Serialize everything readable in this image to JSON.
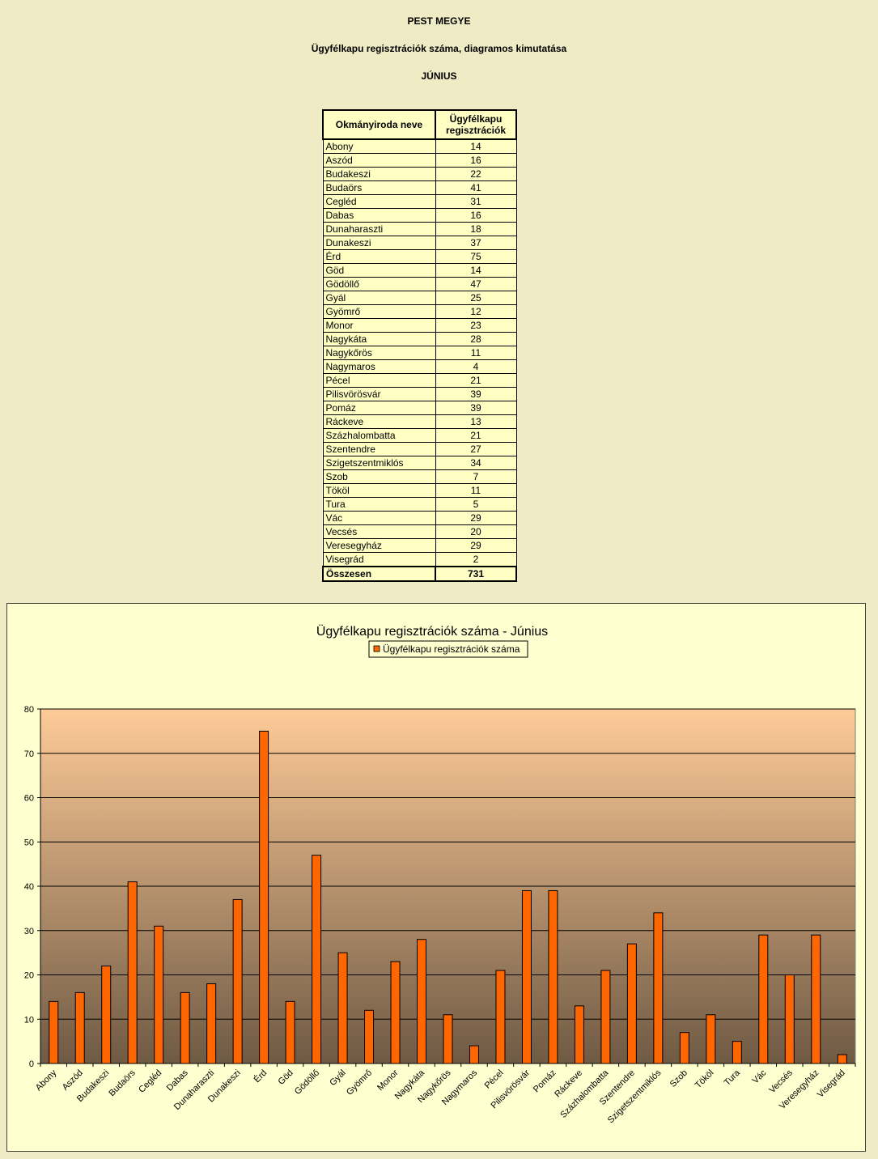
{
  "header": {
    "county": "PEST MEGYE",
    "subtitle": "Ügyfélkapu regisztrációk száma, diagramos kimutatása",
    "month": "JÚNIUS"
  },
  "table": {
    "col1": "Okmányiroda neve",
    "col2_line1": "Ügyfélkapu",
    "col2_line2": "regisztrációk",
    "total_label": "Összesen",
    "total_value": "731"
  },
  "chart_data": {
    "type": "bar",
    "title": "Ügyfélkapu regisztrációk száma - Június",
    "xlabel": "",
    "ylabel": "",
    "ylim": [
      0,
      80
    ],
    "yticks": [
      0,
      10,
      20,
      30,
      40,
      50,
      60,
      70,
      80
    ],
    "grid": true,
    "legend_position": "top-center",
    "categories": [
      "Abony",
      "Aszód",
      "Budakeszi",
      "Budaörs",
      "Cegléd",
      "Dabas",
      "Dunaharaszti",
      "Dunakeszi",
      "Érd",
      "Göd",
      "Gödöllő",
      "Gyál",
      "Gyömrő",
      "Monor",
      "Nagykáta",
      "Nagykőrös",
      "Nagymaros",
      "Pécel",
      "Pilisvörösvár",
      "Pomáz",
      "Ráckeve",
      "Százhalombatta",
      "Szentendre",
      "Szigetszentmiklós",
      "Szob",
      "Tököl",
      "Tura",
      "Vác",
      "Vecsés",
      "Veresegyház",
      "Visegrád"
    ],
    "series": [
      {
        "name": "Ügyfélkapu regisztrációk száma",
        "values": [
          14,
          16,
          22,
          41,
          31,
          16,
          18,
          37,
          75,
          14,
          47,
          25,
          12,
          23,
          28,
          11,
          4,
          21,
          39,
          39,
          13,
          21,
          27,
          34,
          7,
          11,
          5,
          29,
          20,
          29,
          2
        ]
      }
    ],
    "colors": {
      "bar": "#ff6600",
      "bar_edge": "#000000",
      "plot_top": "#fecb98",
      "plot_bottom": "#6f5a44",
      "frame_bg": "#ffffd0"
    }
  }
}
